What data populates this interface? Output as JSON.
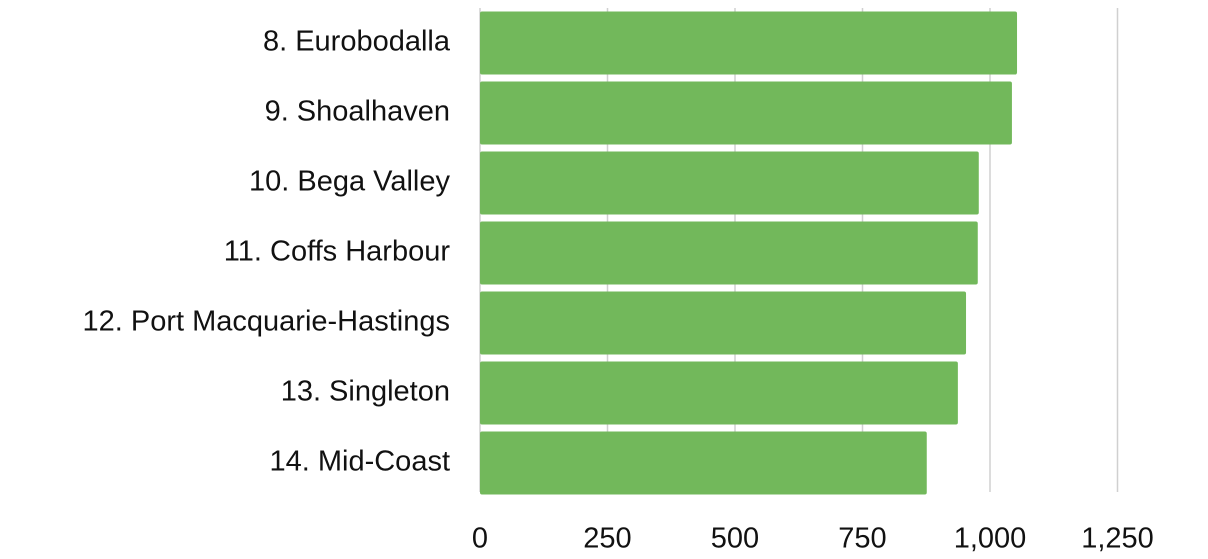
{
  "chart_data": {
    "type": "hbar",
    "categories": [
      "8. Eurobodalla",
      "9. Shoalhaven",
      "10. Bega Valley",
      "11. Coffs Harbour",
      "12. Port Macquarie-Hastings",
      "13. Singleton",
      "14. Mid-Coast"
    ],
    "values": [
      1053,
      1043,
      978,
      976,
      953,
      937,
      876
    ],
    "color": "#72b85b",
    "xlim": [
      0,
      1400
    ],
    "xticks": [
      0,
      250,
      500,
      750,
      {
        "value": 1000,
        "label": "1,000"
      },
      {
        "value": 1250,
        "label": "1,250"
      }
    ],
    "grid": true
  }
}
